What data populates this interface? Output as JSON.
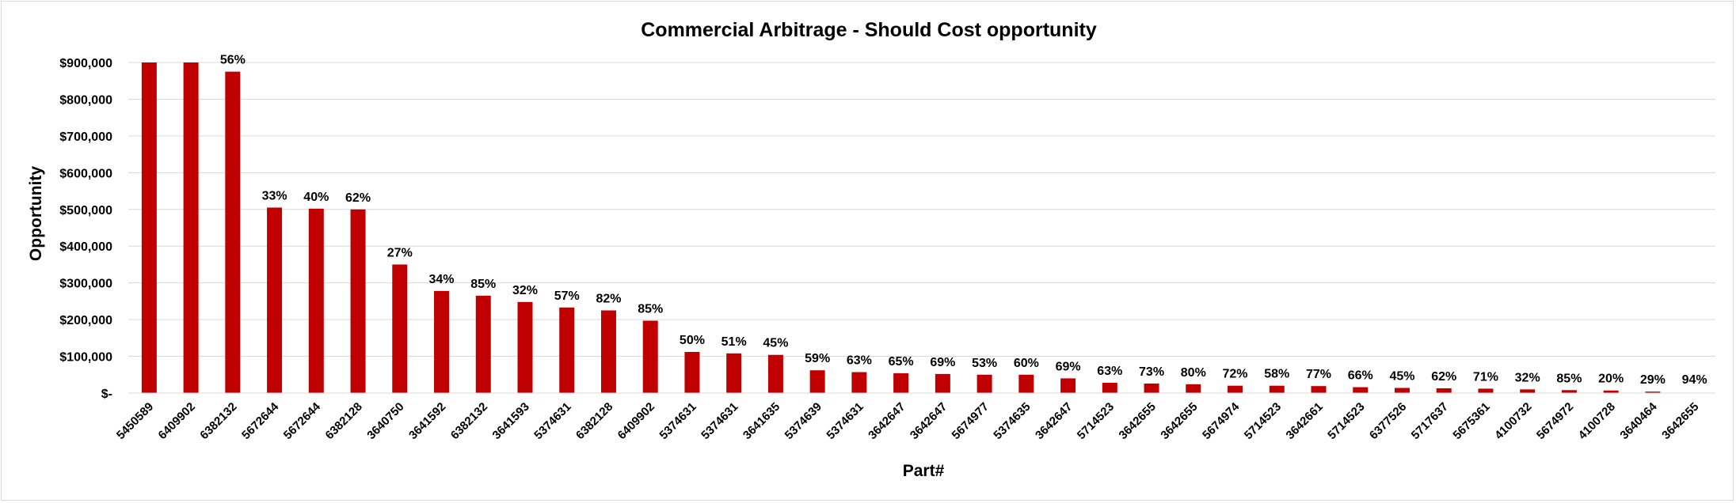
{
  "chart_data": {
    "type": "bar",
    "title": "Commercial Arbitrage - Should Cost opportunity",
    "xlabel": "Part#",
    "ylabel": "Opportunity",
    "ylim": [
      0,
      900000
    ],
    "yticks": [
      0,
      100000,
      200000,
      300000,
      400000,
      500000,
      600000,
      700000,
      800000,
      900000
    ],
    "ytick_labels": [
      "$-",
      "$100,000",
      "$200,000",
      "$300,000",
      "$400,000",
      "$500,000",
      "$600,000",
      "$700,000",
      "$800,000",
      "$900,000"
    ],
    "grid": true,
    "bar_color": "#c00000",
    "categories": [
      "5450589",
      "6409902",
      "6382132",
      "5672644",
      "5672644",
      "6382128",
      "3640750",
      "3641592",
      "6382132",
      "3641593",
      "5374631",
      "6382128",
      "6409902",
      "5374631",
      "5374631",
      "3641635",
      "5374639",
      "5374631",
      "3642647",
      "3642647",
      "5674977",
      "5374635",
      "3642647",
      "5714523",
      "3642655",
      "3642655",
      "5674974",
      "5714523",
      "3642661",
      "5714523",
      "6377526",
      "5717637",
      "5675361",
      "4100732",
      "5674972",
      "4100728",
      "3640464",
      "3642655"
    ],
    "values": [
      900000,
      900000,
      875000,
      505000,
      502000,
      500000,
      350000,
      278000,
      265000,
      248000,
      233000,
      225000,
      197000,
      112000,
      108000,
      104000,
      62000,
      57000,
      54000,
      52000,
      50000,
      50000,
      40000,
      28000,
      26000,
      24000,
      20000,
      20000,
      19000,
      16000,
      14000,
      13000,
      12000,
      10000,
      8000,
      7000,
      4000,
      1000
    ],
    "data_labels": [
      "",
      "",
      "56%",
      "33%",
      "40%",
      "62%",
      "27%",
      "34%",
      "85%",
      "32%",
      "57%",
      "82%",
      "85%",
      "50%",
      "51%",
      "45%",
      "59%",
      "63%",
      "65%",
      "69%",
      "53%",
      "60%",
      "69%",
      "63%",
      "73%",
      "80%",
      "72%",
      "58%",
      "77%",
      "66%",
      "45%",
      "62%",
      "71%",
      "32%",
      "85%",
      "20%",
      "29%",
      "94%"
    ]
  }
}
